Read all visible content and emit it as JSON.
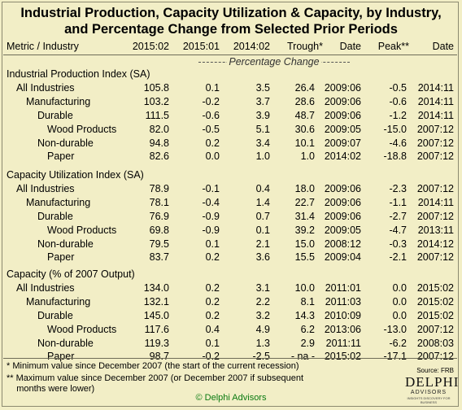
{
  "title": {
    "line1": "Industrial Production, Capacity Utilization & Capacity, by Industry,",
    "line2": "and Percentage Change from Selected Prior Periods"
  },
  "columns": [
    "Metric / Industry",
    "2015:02",
    "2015:01",
    "2014:02",
    "Trough*",
    "Date",
    "Peak**",
    "Date"
  ],
  "pct_change_label": "Percentage Change",
  "sections": [
    {
      "title": "Industrial Production Index (SA)",
      "rows": [
        {
          "name": "All Industries",
          "level": 1,
          "values": [
            "105.8",
            "0.1",
            "3.5",
            "26.4",
            "2009:06",
            "-0.5",
            "2014:11"
          ]
        },
        {
          "name": "Manufacturing",
          "level": 2,
          "values": [
            "103.2",
            "-0.2",
            "3.7",
            "28.6",
            "2009:06",
            "-0.6",
            "2014:11"
          ]
        },
        {
          "name": "Durable",
          "level": 3,
          "values": [
            "111.5",
            "-0.6",
            "3.9",
            "48.7",
            "2009:06",
            "-1.2",
            "2014:11"
          ]
        },
        {
          "name": "Wood Products",
          "level": 4,
          "values": [
            "82.0",
            "-0.5",
            "5.1",
            "30.6",
            "2009:05",
            "-15.0",
            "2007:12"
          ]
        },
        {
          "name": "Non-durable",
          "level": 3,
          "values": [
            "94.8",
            "0.2",
            "3.4",
            "10.1",
            "2009:07",
            "-4.6",
            "2007:12"
          ]
        },
        {
          "name": "Paper",
          "level": 4,
          "values": [
            "82.6",
            "0.0",
            "1.0",
            "1.0",
            "2014:02",
            "-18.8",
            "2007:12"
          ]
        }
      ]
    },
    {
      "title": "Capacity Utilization Index (SA)",
      "rows": [
        {
          "name": "All Industries",
          "level": 1,
          "values": [
            "78.9",
            "-0.1",
            "0.4",
            "18.0",
            "2009:06",
            "-2.3",
            "2007:12"
          ]
        },
        {
          "name": "Manufacturing",
          "level": 2,
          "values": [
            "78.1",
            "-0.4",
            "1.4",
            "22.7",
            "2009:06",
            "-1.1",
            "2014:11"
          ]
        },
        {
          "name": "Durable",
          "level": 3,
          "values": [
            "76.9",
            "-0.9",
            "0.7",
            "31.4",
            "2009:06",
            "-2.7",
            "2007:12"
          ]
        },
        {
          "name": "Wood Products",
          "level": 4,
          "values": [
            "69.8",
            "-0.9",
            "0.1",
            "39.2",
            "2009:05",
            "-4.7",
            "2013:11"
          ]
        },
        {
          "name": "Non-durable",
          "level": 3,
          "values": [
            "79.5",
            "0.1",
            "2.1",
            "15.0",
            "2008:12",
            "-0.3",
            "2014:12"
          ]
        },
        {
          "name": "Paper",
          "level": 4,
          "values": [
            "83.7",
            "0.2",
            "3.6",
            "15.5",
            "2009:04",
            "-2.1",
            "2007:12"
          ]
        }
      ]
    },
    {
      "title": "Capacity (% of 2007 Output)",
      "rows": [
        {
          "name": "All Industries",
          "level": 1,
          "values": [
            "134.0",
            "0.2",
            "3.1",
            "10.0",
            "2011:01",
            "0.0",
            "2015:02"
          ]
        },
        {
          "name": "Manufacturing",
          "level": 2,
          "values": [
            "132.1",
            "0.2",
            "2.2",
            "8.1",
            "2011:03",
            "0.0",
            "2015:02"
          ]
        },
        {
          "name": "Durable",
          "level": 3,
          "values": [
            "145.0",
            "0.2",
            "3.2",
            "14.3",
            "2010:09",
            "0.0",
            "2015:02"
          ]
        },
        {
          "name": "Wood Products",
          "level": 4,
          "values": [
            "117.6",
            "0.4",
            "4.9",
            "6.2",
            "2013:06",
            "-13.0",
            "2007:12"
          ]
        },
        {
          "name": "Non-durable",
          "level": 3,
          "values": [
            "119.3",
            "0.1",
            "1.3",
            "2.9",
            "2011:11",
            "-6.2",
            "2008:03"
          ]
        },
        {
          "name": "Paper",
          "level": 4,
          "values": [
            "98.7",
            "-0.2",
            "-2.5",
            "- na -",
            "2015:02",
            "-17.1",
            "2007:12"
          ]
        }
      ]
    }
  ],
  "notes": [
    "*  Minimum value since December 2007 (the start of the current recession)",
    "** Maximum value since December 2007 (or December 2007 if subsequent",
    "    months were lower)"
  ],
  "source": "Source: FRB",
  "logo": {
    "main": "DELPHI",
    "sub": "ADVISORS",
    "tag": "INSIGHTS DISCOVERY FOR BUSINESS"
  },
  "credit": "© Delphi Advisors"
}
